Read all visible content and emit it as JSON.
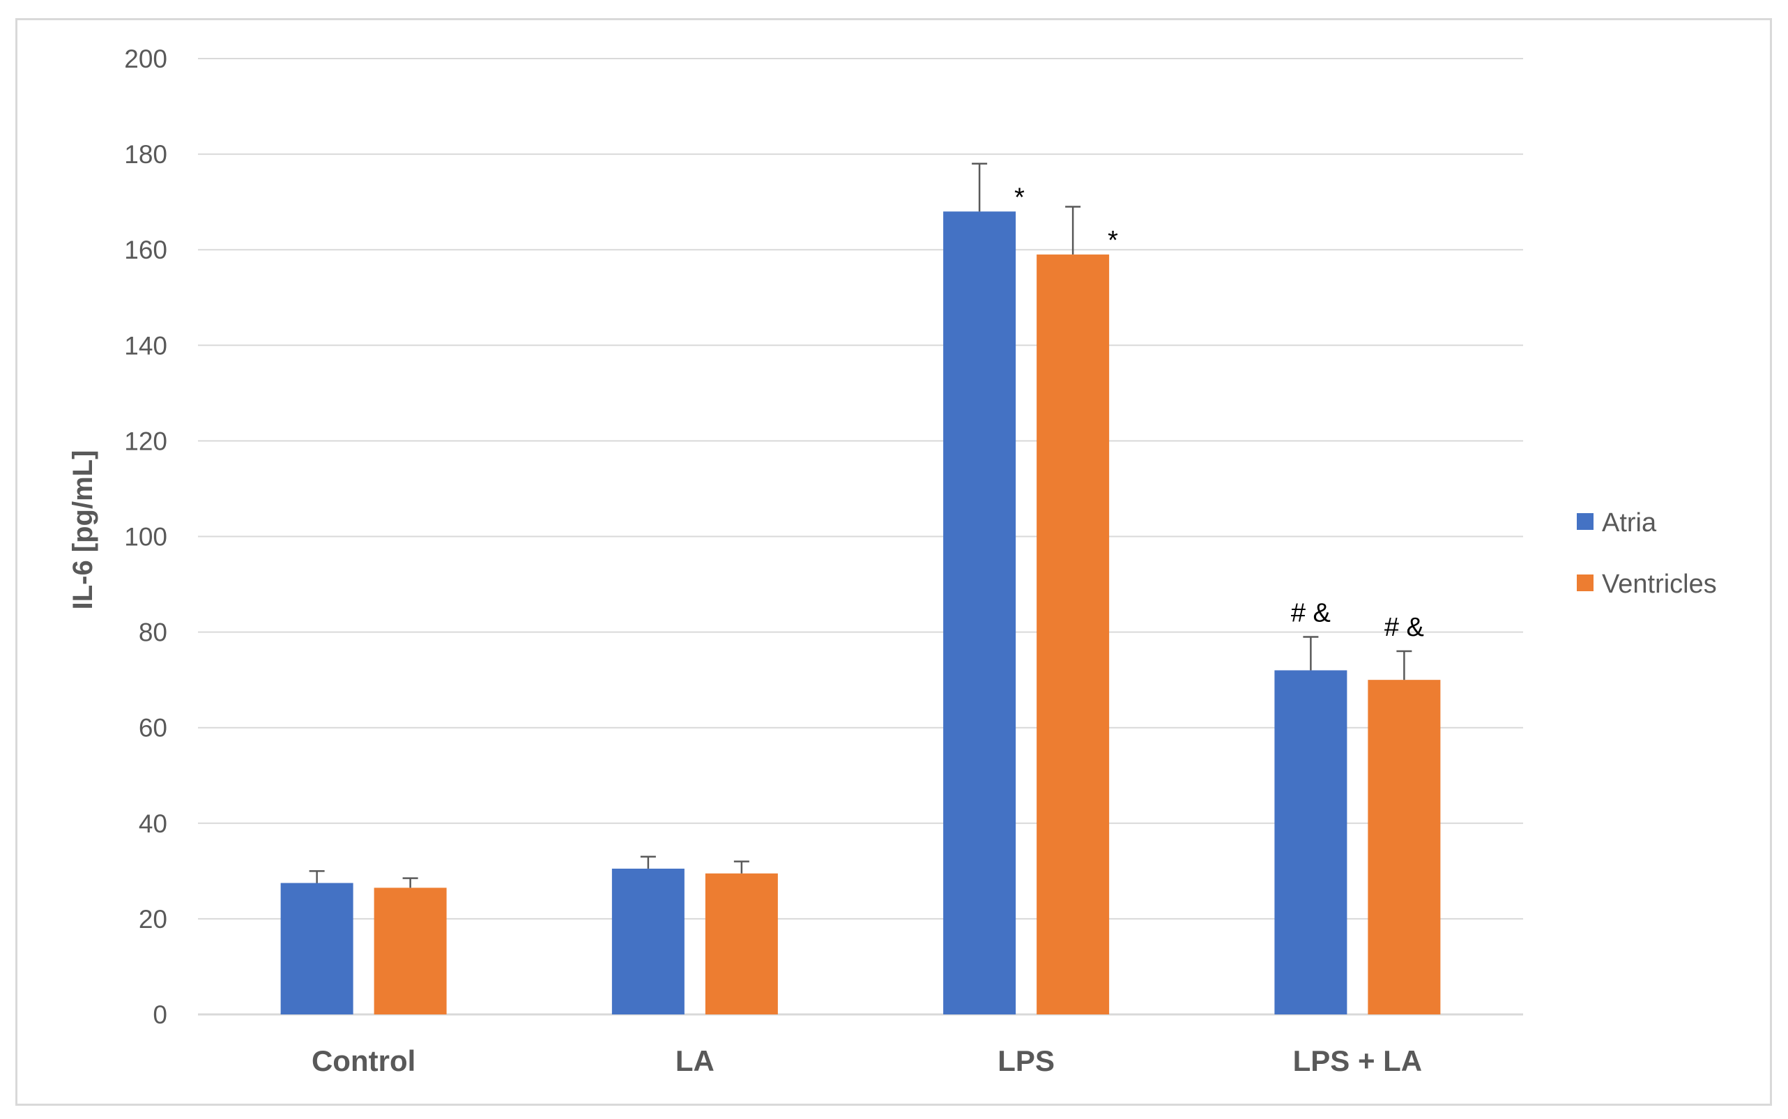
{
  "chart_data": {
    "type": "bar",
    "title": "",
    "xlabel": "",
    "ylabel": "IL-6 [pg/mL]",
    "ylim": [
      0,
      200
    ],
    "yticks": [
      "0",
      "20",
      "40",
      "60",
      "80",
      "100",
      "120",
      "140",
      "160",
      "180",
      "200"
    ],
    "categories": [
      "Control",
      "LA",
      "LPS",
      "LPS + LA"
    ],
    "series": [
      {
        "name": "Atria",
        "color": "#4472c4",
        "values": [
          27.5,
          30.5,
          168,
          72
        ],
        "errors": [
          2.5,
          2.5,
          10,
          7
        ],
        "annotations": [
          "",
          "",
          "*",
          "# &"
        ]
      },
      {
        "name": "Ventricles",
        "color": "#ed7d31",
        "values": [
          26.5,
          29.5,
          159,
          70
        ],
        "errors": [
          2,
          2.5,
          10,
          6
        ],
        "annotations": [
          "",
          "",
          "*",
          "# &"
        ]
      }
    ],
    "grid": true,
    "gridColor": "#d9d9d9",
    "legend": "right"
  }
}
